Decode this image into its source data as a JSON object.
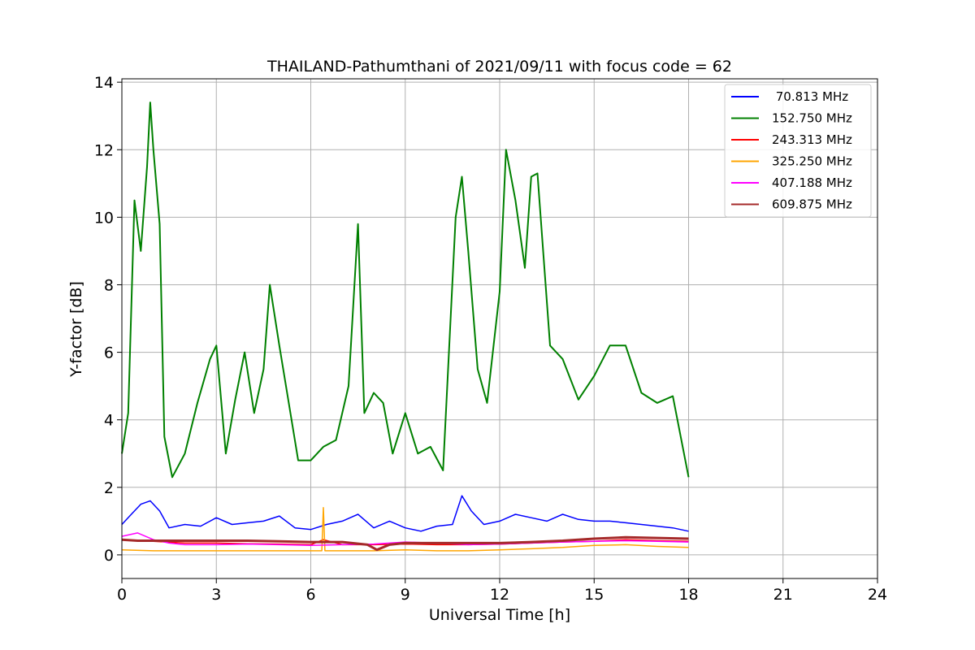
{
  "chart_data": {
    "type": "line",
    "title": "THAILAND-Pathumthani of 2021/09/11 with focus code = 62",
    "xlabel": "Universal Time [h]",
    "ylabel": "Y-factor [dB]",
    "xlim": [
      0,
      24
    ],
    "ylim": [
      -0.7,
      14.1
    ],
    "xticks": [
      0,
      3,
      6,
      9,
      12,
      15,
      18,
      21,
      24
    ],
    "xtick_labels": [
      "0",
      "3",
      "6",
      "9",
      "12",
      "15",
      "18",
      "21",
      "24"
    ],
    "yticks": [
      0,
      2,
      4,
      6,
      8,
      10,
      12,
      14
    ],
    "ytick_labels": [
      "0",
      "2",
      "4",
      "6",
      "8",
      "10",
      "12",
      "14"
    ],
    "grid": true,
    "legend_position": "top-right",
    "series": [
      {
        "name": " 70.813 MHz",
        "color": "#0000ff",
        "x": [
          0,
          0.3,
          0.6,
          0.9,
          1.2,
          1.5,
          2.0,
          2.5,
          3.0,
          3.5,
          4.0,
          4.5,
          5.0,
          5.5,
          6.0,
          6.5,
          7.0,
          7.5,
          8.0,
          8.5,
          9.0,
          9.5,
          10.0,
          10.5,
          10.8,
          11.1,
          11.5,
          12.0,
          12.5,
          13.0,
          13.5,
          14.0,
          14.5,
          15.0,
          15.5,
          16.0,
          16.5,
          17.0,
          17.5,
          18.0
        ],
        "y": [
          0.9,
          1.2,
          1.5,
          1.6,
          1.3,
          0.8,
          0.9,
          0.85,
          1.1,
          0.9,
          0.95,
          1.0,
          1.15,
          0.8,
          0.75,
          0.9,
          1.0,
          1.2,
          0.8,
          1.0,
          0.8,
          0.7,
          0.85,
          0.9,
          1.75,
          1.3,
          0.9,
          1.0,
          1.2,
          1.1,
          1.0,
          1.2,
          1.05,
          1.0,
          1.0,
          0.95,
          0.9,
          0.85,
          0.8,
          0.7
        ]
      },
      {
        "name": "152.750 MHz",
        "color": "#008000",
        "x": [
          0,
          0.2,
          0.4,
          0.6,
          0.8,
          0.9,
          1.0,
          1.2,
          1.35,
          1.6,
          2.0,
          2.4,
          2.8,
          3.0,
          3.3,
          3.6,
          3.9,
          4.2,
          4.5,
          4.7,
          5.0,
          5.3,
          5.6,
          6.0,
          6.4,
          6.8,
          7.2,
          7.5,
          7.7,
          8.0,
          8.3,
          8.6,
          9.0,
          9.4,
          9.8,
          10.2,
          10.6,
          10.8,
          11.0,
          11.3,
          11.6,
          12.0,
          12.2,
          12.5,
          12.8,
          13.0,
          13.2,
          13.6,
          14.0,
          14.5,
          15.0,
          15.5,
          16.0,
          16.5,
          17.0,
          17.5,
          18.0
        ],
        "y": [
          3.0,
          4.2,
          10.5,
          9.0,
          11.5,
          13.4,
          12.0,
          9.8,
          3.5,
          2.3,
          3.0,
          4.5,
          5.8,
          6.2,
          3.0,
          4.6,
          6.0,
          4.2,
          5.5,
          8.0,
          6.2,
          4.5,
          2.8,
          2.8,
          3.2,
          3.4,
          5.0,
          9.8,
          4.2,
          4.8,
          4.5,
          3.0,
          4.2,
          3.0,
          3.2,
          2.5,
          10.0,
          11.2,
          9.0,
          5.5,
          4.5,
          7.8,
          12.0,
          10.5,
          8.5,
          11.2,
          11.3,
          6.2,
          5.8,
          4.6,
          5.3,
          6.2,
          6.2,
          4.8,
          4.5,
          4.7,
          2.3
        ]
      },
      {
        "name": "243.313 MHz",
        "color": "#ff0000",
        "x": [
          0,
          1,
          2,
          3,
          4,
          5,
          6,
          6.4,
          7,
          8,
          9,
          10,
          11,
          12,
          13,
          14,
          15,
          16,
          17,
          18
        ],
        "y": [
          0.45,
          0.4,
          0.35,
          0.35,
          0.33,
          0.32,
          0.3,
          0.45,
          0.3,
          0.3,
          0.32,
          0.3,
          0.3,
          0.32,
          0.35,
          0.38,
          0.4,
          0.45,
          0.42,
          0.4
        ]
      },
      {
        "name": "325.250 MHz",
        "color": "#ffa500",
        "x": [
          0,
          1,
          2,
          3,
          4,
          5,
          6,
          6.35,
          6.4,
          6.45,
          7,
          8,
          9,
          10,
          11,
          12,
          13,
          14,
          15,
          16,
          17,
          18
        ],
        "y": [
          0.15,
          0.12,
          0.12,
          0.12,
          0.12,
          0.12,
          0.12,
          0.12,
          1.4,
          0.12,
          0.12,
          0.12,
          0.15,
          0.12,
          0.12,
          0.15,
          0.18,
          0.22,
          0.28,
          0.3,
          0.25,
          0.22
        ]
      },
      {
        "name": "407.188 MHz",
        "color": "#ff00ff",
        "x": [
          0,
          0.5,
          1,
          1.5,
          2,
          3,
          4,
          5,
          6,
          7,
          8,
          9,
          10,
          11,
          12,
          13,
          14,
          15,
          16,
          17,
          18
        ],
        "y": [
          0.55,
          0.65,
          0.45,
          0.35,
          0.3,
          0.3,
          0.32,
          0.3,
          0.28,
          0.3,
          0.32,
          0.38,
          0.35,
          0.3,
          0.32,
          0.35,
          0.38,
          0.4,
          0.42,
          0.4,
          0.38
        ]
      },
      {
        "name": "609.875 MHz",
        "color": "#a52a2a",
        "x": [
          0,
          0.5,
          1,
          2,
          3,
          4,
          5,
          6,
          7,
          7.8,
          8.1,
          8.5,
          9,
          10,
          11,
          12,
          13,
          14,
          15,
          16,
          17,
          18
        ],
        "y": [
          0.45,
          0.42,
          0.42,
          0.42,
          0.42,
          0.42,
          0.4,
          0.38,
          0.38,
          0.3,
          0.15,
          0.3,
          0.35,
          0.35,
          0.35,
          0.35,
          0.38,
          0.42,
          0.48,
          0.52,
          0.5,
          0.48
        ]
      }
    ]
  }
}
